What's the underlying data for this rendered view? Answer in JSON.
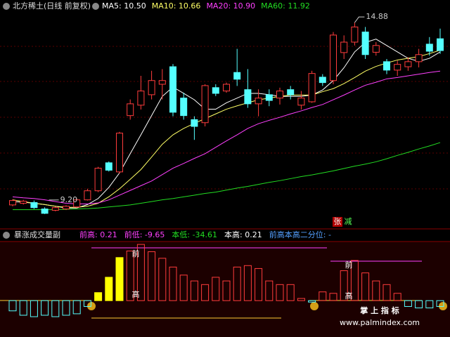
{
  "header": {
    "title": "北方稀土(日线 前复权)"
  },
  "chart_data": [
    {
      "type": "candlestick",
      "ylim": [
        8.78,
        15.55
      ],
      "up_color": "#ff3c3c",
      "down_color": "#54ffff",
      "open": [
        9.47,
        9.52,
        9.54,
        9.35,
        9.31,
        9.35,
        9.41,
        9.62,
        9.89,
        10.72,
        10.45,
        12.12,
        12.43,
        12.74,
        13.05,
        13.57,
        12.64,
        12.0,
        11.91,
        12.95,
        12.85,
        13.4,
        12.89,
        12.47,
        12.74,
        12.64,
        12.89,
        12.43,
        12.53,
        13.26,
        13.16,
        13.99,
        14.3,
        14.6,
        14.0,
        13.72,
        13.47,
        13.57,
        13.72,
        14.24,
        14.4
      ],
      "high": [
        9.64,
        9.62,
        9.6,
        9.4,
        9.42,
        9.46,
        9.66,
        9.95,
        10.6,
        10.76,
        11.64,
        12.6,
        13.3,
        13.45,
        13.5,
        13.65,
        12.8,
        12.1,
        13.05,
        13.05,
        13.1,
        14.1,
        13.5,
        12.9,
        12.9,
        12.95,
        13.0,
        12.85,
        13.45,
        13.35,
        14.6,
        14.5,
        14.88,
        14.75,
        14.3,
        13.8,
        13.75,
        13.85,
        14.1,
        14.45,
        14.7
      ],
      "low": [
        9.43,
        9.48,
        9.35,
        9.2,
        9.28,
        9.32,
        9.38,
        9.6,
        9.85,
        10.46,
        10.4,
        12.0,
        12.3,
        12.6,
        12.6,
        12.1,
        12.0,
        11.4,
        11.8,
        12.7,
        12.8,
        13.0,
        12.35,
        12.1,
        12.4,
        12.45,
        12.6,
        12.3,
        12.5,
        13.0,
        13.05,
        13.8,
        14.2,
        13.8,
        13.9,
        13.35,
        13.3,
        13.45,
        13.55,
        13.9,
        13.95
      ],
      "close": [
        9.6,
        9.58,
        9.39,
        9.22,
        9.39,
        9.43,
        9.62,
        9.89,
        10.56,
        10.5,
        11.6,
        12.47,
        12.85,
        13.16,
        13.16,
        12.22,
        12.12,
        11.8,
        13.01,
        12.78,
        13.05,
        13.2,
        12.47,
        12.64,
        12.57,
        12.85,
        12.74,
        12.64,
        13.37,
        13.1,
        14.51,
        14.3,
        14.75,
        13.93,
        14.2,
        13.47,
        13.64,
        13.72,
        13.93,
        14.03,
        14.05
      ],
      "series": [
        {
          "name": "MA5",
          "color": "#ffffff",
          "legend": {
            "value": 10.5,
            "label": "MA5: 10.50"
          },
          "values": [
            9.57,
            9.55,
            9.52,
            9.48,
            9.43,
            9.38,
            9.38,
            9.48,
            9.66,
            9.99,
            10.42,
            10.99,
            11.55,
            12.12,
            12.69,
            12.97,
            12.78,
            12.59,
            12.31,
            12.31,
            12.5,
            12.64,
            12.78,
            12.78,
            12.74,
            12.69,
            12.69,
            12.69,
            12.73,
            12.88,
            13.16,
            13.54,
            14.01,
            14.29,
            14.39,
            14.2,
            14.01,
            13.82,
            13.73,
            13.82,
            14.01
          ]
        },
        {
          "name": "MA10",
          "color": "#ffff66",
          "legend": {
            "value": 10.66,
            "label": "MA10: 10.66"
          },
          "values": [
            9.62,
            9.57,
            9.52,
            9.48,
            9.43,
            9.4,
            9.4,
            9.43,
            9.52,
            9.71,
            9.95,
            10.23,
            10.52,
            10.89,
            11.27,
            11.55,
            11.74,
            11.89,
            12.03,
            12.17,
            12.31,
            12.41,
            12.5,
            12.59,
            12.64,
            12.69,
            12.73,
            12.73,
            12.73,
            12.83,
            12.92,
            13.07,
            13.25,
            13.44,
            13.58,
            13.68,
            13.77,
            13.82,
            13.87,
            13.96,
            14.06
          ]
        },
        {
          "name": "MA20",
          "color": "#ff40ff",
          "legend": {
            "value": 10.9,
            "label": "MA20: 10.90"
          },
          "values": [
            9.71,
            9.68,
            9.66,
            9.62,
            9.57,
            9.52,
            9.5,
            9.5,
            9.53,
            9.62,
            9.76,
            9.9,
            10.04,
            10.18,
            10.37,
            10.56,
            10.7,
            10.85,
            10.99,
            11.18,
            11.37,
            11.55,
            11.74,
            11.88,
            11.98,
            12.07,
            12.17,
            12.26,
            12.36,
            12.45,
            12.59,
            12.73,
            12.88,
            13.02,
            13.11,
            13.21,
            13.25,
            13.3,
            13.35,
            13.4,
            13.44
          ]
        },
        {
          "name": "MA60",
          "color": "#22dd22",
          "legend": {
            "value": 11.92,
            "label": "MA60: 11.92"
          },
          "values": [
            9.33,
            9.33,
            9.33,
            9.33,
            9.33,
            9.34,
            9.35,
            9.36,
            9.38,
            9.41,
            9.44,
            9.47,
            9.52,
            9.57,
            9.62,
            9.66,
            9.71,
            9.76,
            9.81,
            9.85,
            9.91,
            9.97,
            10.02,
            10.08,
            10.14,
            10.19,
            10.25,
            10.31,
            10.36,
            10.42,
            10.48,
            10.55,
            10.62,
            10.68,
            10.75,
            10.84,
            10.94,
            11.03,
            11.13,
            11.22,
            11.32
          ]
        }
      ],
      "high_mark": 14.88,
      "low_mark": {
        "value": 9.2,
        "label": "9.20"
      },
      "badges": [
        "张",
        "减"
      ]
    },
    {
      "type": "bar",
      "title": "暴涨成交量副",
      "ylim": [
        -45,
        80
      ],
      "stats": [
        {
          "label": "前高: 0.21",
          "value": 0.21,
          "color": "#ff40ff"
        },
        {
          "label": "前低: -9.65",
          "value": -9.65,
          "color": "#ff40ff"
        },
        {
          "label": "本低: -34.61",
          "value": -34.61,
          "color": "#22dd22"
        },
        {
          "label": "本高: 0.21",
          "value": 0.21,
          "color": "#ffffff"
        },
        {
          "label": "前高本高二分位: -",
          "color": "#54a0ff"
        }
      ],
      "values": [
        -14,
        -20,
        -22,
        -20,
        -22,
        -20,
        -18,
        -8,
        11,
        32,
        59,
        68,
        77,
        67,
        58,
        46,
        35,
        27,
        22,
        32,
        27,
        46,
        48,
        44,
        27,
        22,
        22,
        3,
        -2,
        12,
        10,
        41,
        55,
        38,
        27,
        22,
        10,
        -8,
        -10,
        -10,
        -8
      ],
      "colors": [
        "#54ffff",
        "#54ffff",
        "#54ffff",
        "#54ffff",
        "#54ffff",
        "#54ffff",
        "#54ffff",
        "#54ffff",
        "#ffff00",
        "#ffff00",
        "#ffff00",
        "#ff3c3c",
        "#ff3c3c",
        "#ff3c3c",
        "#ff3c3c",
        "#ff3c3c",
        "#ff3c3c",
        "#ff3c3c",
        "#ff3c3c",
        "#ff3c3c",
        "#ff3c3c",
        "#ff3c3c",
        "#ff3c3c",
        "#ff3c3c",
        "#ff3c3c",
        "#ff3c3c",
        "#ff3c3c",
        "#ff3c3c",
        "#54ffff",
        "#ff3c3c",
        "#ff3c3c",
        "#ff3c3c",
        "#ff3c3c",
        "#ff3c3c",
        "#ff3c3c",
        "#ff3c3c",
        "#ff3c3c",
        "#54ffff",
        "#54ffff",
        "#54ffff",
        "#54ffff"
      ],
      "markers": [
        "前",
        "高",
        "前",
        "高"
      ]
    }
  ],
  "watermark": {
    "brand": "掌 上 指 标",
    "url": "www.palmindex.com"
  }
}
